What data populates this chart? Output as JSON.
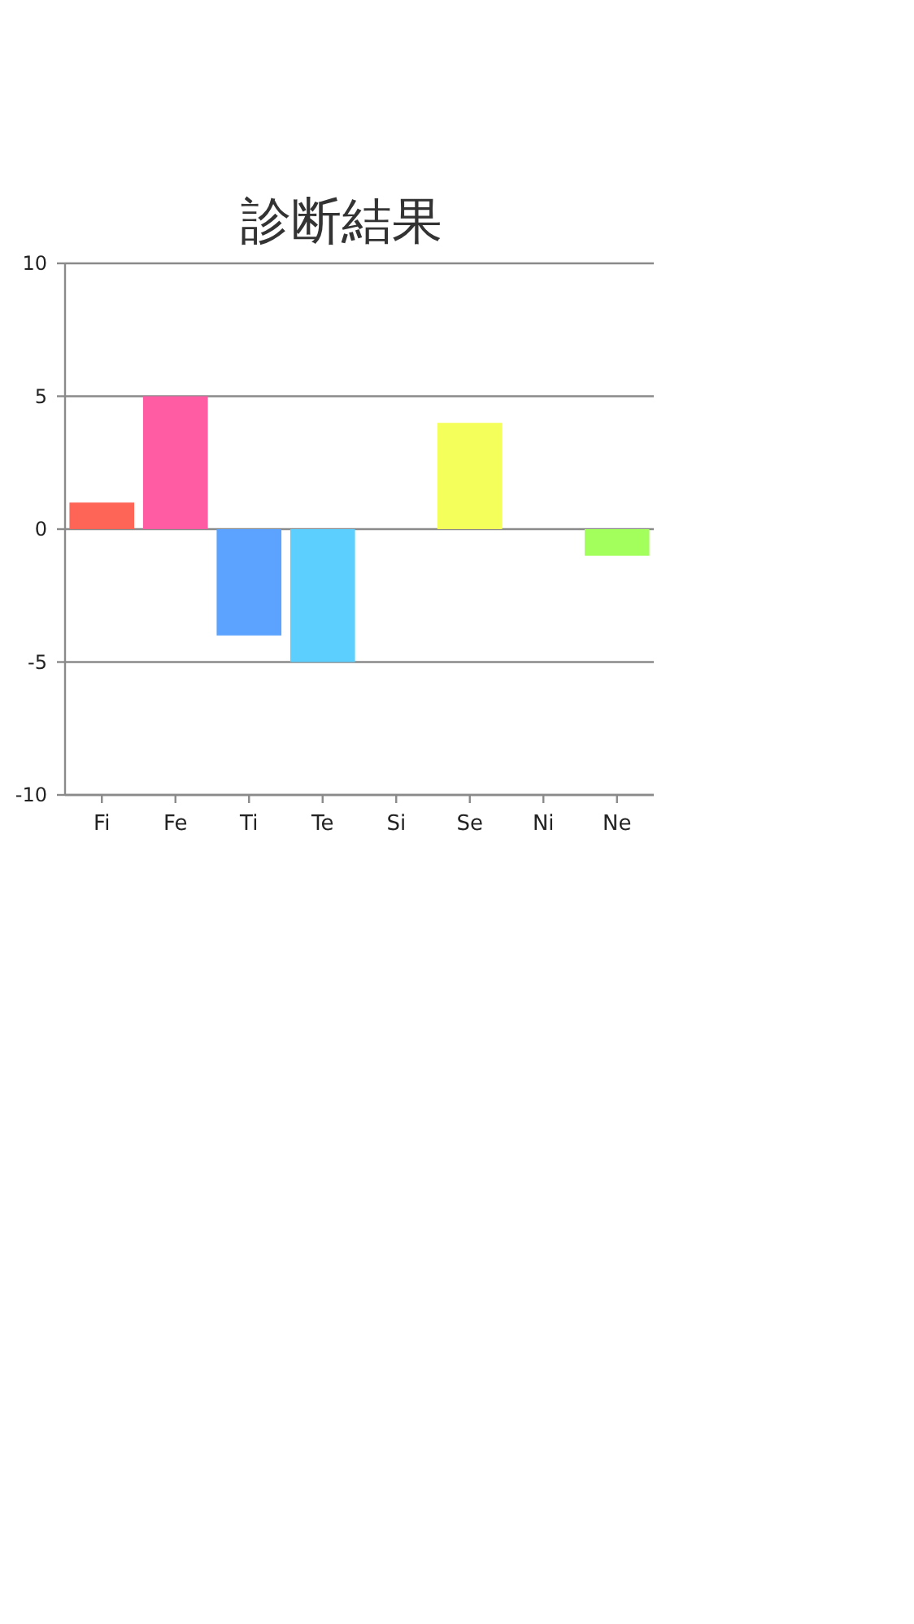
{
  "chart_data": {
    "type": "bar",
    "title": "診断結果",
    "categories": [
      "Fi",
      "Fe",
      "Ti",
      "Te",
      "Si",
      "Se",
      "Ni",
      "Ne"
    ],
    "values": [
      1,
      5,
      -4,
      -5,
      0,
      4,
      0,
      -1
    ],
    "colors": [
      "#fe6557",
      "#ff5ca3",
      "#5ca3ff",
      "#5ccfff",
      null,
      "#f5ff5c",
      null,
      "#a3ff5c"
    ],
    "ylim": [
      -10,
      10
    ],
    "yticks": [
      -10,
      -5,
      0,
      5,
      10
    ],
    "grid": "y"
  }
}
